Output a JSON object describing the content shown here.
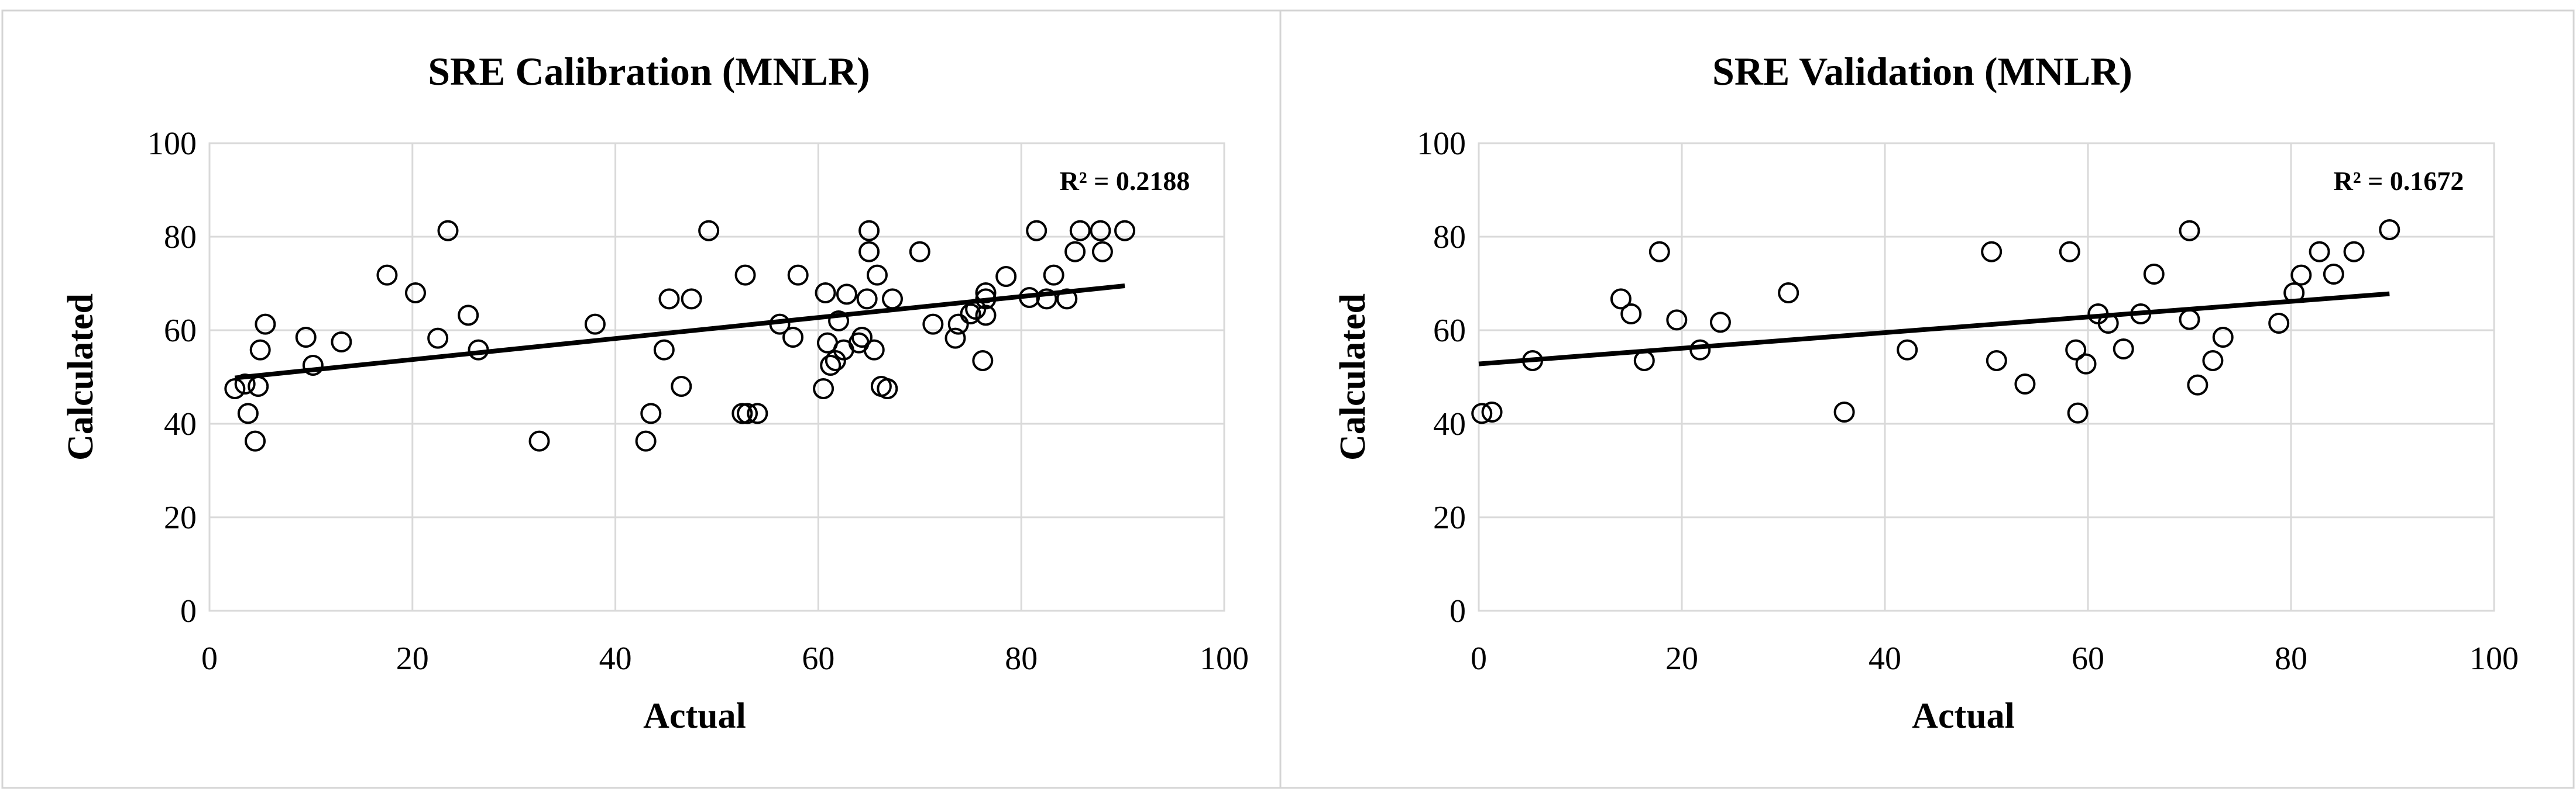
{
  "chart_data": [
    {
      "type": "scatter",
      "title": "SRE Calibration (MNLR)",
      "xlabel": "Actual",
      "ylabel": "Calculated",
      "xlim": [
        0,
        100
      ],
      "ylim": [
        0,
        100
      ],
      "x_ticks": [
        "0",
        "20",
        "40",
        "60",
        "80",
        "100"
      ],
      "y_ticks": [
        "0",
        "20",
        "40",
        "60",
        "80",
        "100"
      ],
      "grid": true,
      "trendline": {
        "type": "linear",
        "x": [
          2.5,
          90.2
        ],
        "y": [
          49.8,
          69.5
        ]
      },
      "r2_label": "R² = 0.2188",
      "points": [
        [
          2.5,
          47.5
        ],
        [
          3.5,
          48.5
        ],
        [
          3.8,
          42.2
        ],
        [
          4.5,
          36.3
        ],
        [
          4.8,
          48.0
        ],
        [
          5.0,
          55.8
        ],
        [
          5.5,
          61.3
        ],
        [
          9.5,
          58.5
        ],
        [
          10.2,
          52.5
        ],
        [
          13.0,
          57.5
        ],
        [
          17.5,
          71.8
        ],
        [
          20.3,
          68.0
        ],
        [
          22.5,
          58.3
        ],
        [
          23.5,
          81.3
        ],
        [
          25.5,
          63.2
        ],
        [
          26.5,
          55.8
        ],
        [
          32.5,
          36.3
        ],
        [
          38.0,
          61.3
        ],
        [
          43.0,
          36.3
        ],
        [
          43.5,
          42.2
        ],
        [
          44.8,
          55.8
        ],
        [
          45.3,
          66.7
        ],
        [
          46.5,
          48.0
        ],
        [
          47.5,
          66.7
        ],
        [
          49.2,
          81.3
        ],
        [
          52.5,
          42.2
        ],
        [
          52.8,
          71.8
        ],
        [
          53.0,
          42.2
        ],
        [
          54.0,
          42.2
        ],
        [
          56.2,
          61.3
        ],
        [
          57.5,
          58.5
        ],
        [
          58.0,
          71.8
        ],
        [
          60.5,
          47.5
        ],
        [
          60.7,
          68.0
        ],
        [
          60.9,
          57.3
        ],
        [
          61.2,
          52.5
        ],
        [
          61.7,
          53.5
        ],
        [
          62.0,
          62.0
        ],
        [
          62.5,
          55.8
        ],
        [
          62.8,
          67.7
        ],
        [
          64.0,
          57.3
        ],
        [
          64.3,
          58.5
        ],
        [
          64.8,
          66.7
        ],
        [
          65.0,
          81.3
        ],
        [
          65.0,
          76.8
        ],
        [
          65.5,
          55.8
        ],
        [
          65.8,
          71.8
        ],
        [
          66.2,
          48.0
        ],
        [
          66.8,
          47.5
        ],
        [
          67.3,
          66.7
        ],
        [
          70.0,
          76.8
        ],
        [
          71.3,
          61.3
        ],
        [
          73.5,
          58.3
        ],
        [
          73.8,
          61.3
        ],
        [
          75.0,
          63.5
        ],
        [
          75.5,
          64.5
        ],
        [
          76.2,
          53.5
        ],
        [
          76.5,
          63.2
        ],
        [
          76.5,
          66.7
        ],
        [
          76.5,
          68.0
        ],
        [
          78.5,
          71.5
        ],
        [
          80.8,
          67.0
        ],
        [
          81.5,
          81.3
        ],
        [
          82.5,
          66.7
        ],
        [
          83.2,
          71.8
        ],
        [
          84.5,
          66.7
        ],
        [
          85.3,
          76.8
        ],
        [
          85.8,
          81.3
        ],
        [
          87.8,
          81.3
        ],
        [
          88.0,
          76.8
        ],
        [
          90.2,
          81.3
        ]
      ]
    },
    {
      "type": "scatter",
      "title": "SRE Validation (MNLR)",
      "xlabel": "Actual",
      "ylabel": "Calculated",
      "xlim": [
        0,
        100
      ],
      "ylim": [
        0,
        100
      ],
      "x_ticks": [
        "0",
        "20",
        "40",
        "60",
        "80",
        "100"
      ],
      "y_ticks": [
        "0",
        "20",
        "40",
        "60",
        "80",
        "100"
      ],
      "grid": true,
      "trendline": {
        "type": "linear",
        "x": [
          0,
          89.7
        ],
        "y": [
          52.8,
          67.8
        ]
      },
      "r2_label": "R² = 0.1672",
      "points": [
        [
          0.3,
          42.2
        ],
        [
          1.3,
          42.5
        ],
        [
          5.3,
          53.5
        ],
        [
          14.0,
          66.7
        ],
        [
          15.0,
          63.5
        ],
        [
          16.3,
          53.5
        ],
        [
          17.8,
          76.8
        ],
        [
          19.5,
          62.2
        ],
        [
          21.8,
          55.8
        ],
        [
          23.8,
          61.7
        ],
        [
          30.5,
          68.0
        ],
        [
          36.0,
          42.5
        ],
        [
          42.2,
          55.8
        ],
        [
          50.5,
          76.8
        ],
        [
          51.0,
          53.5
        ],
        [
          53.8,
          48.5
        ],
        [
          58.2,
          76.8
        ],
        [
          58.8,
          55.8
        ],
        [
          59.0,
          42.3
        ],
        [
          59.8,
          52.8
        ],
        [
          61.0,
          63.5
        ],
        [
          62.0,
          61.5
        ],
        [
          63.5,
          56.0
        ],
        [
          65.2,
          63.5
        ],
        [
          66.5,
          72.0
        ],
        [
          70.0,
          81.3
        ],
        [
          70.0,
          62.3
        ],
        [
          70.8,
          48.3
        ],
        [
          72.3,
          53.5
        ],
        [
          73.3,
          58.5
        ],
        [
          78.8,
          61.5
        ],
        [
          80.3,
          68.0
        ],
        [
          81.0,
          71.8
        ],
        [
          82.8,
          76.8
        ],
        [
          84.2,
          72.0
        ],
        [
          86.2,
          76.8
        ],
        [
          89.7,
          81.5
        ]
      ]
    }
  ]
}
